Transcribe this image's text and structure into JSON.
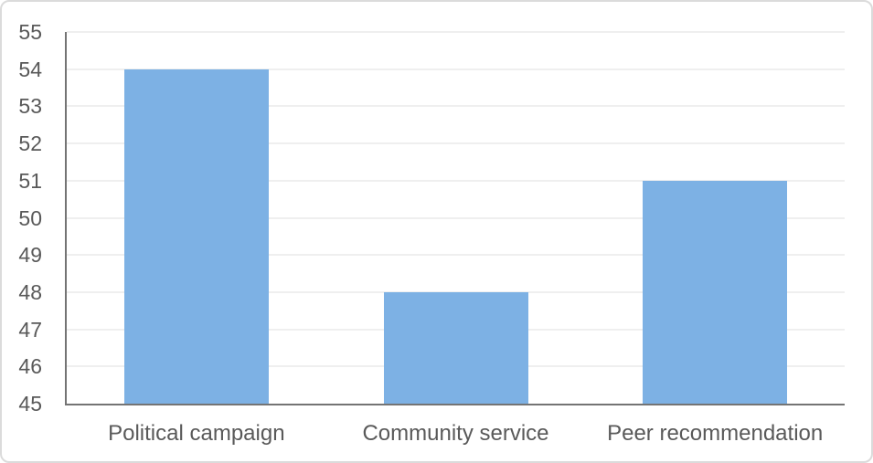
{
  "chart_data": {
    "type": "bar",
    "title": "",
    "xlabel": "",
    "ylabel": "",
    "categories": [
      "Political campaign",
      "Community service",
      "Peer recommendation"
    ],
    "values": [
      54,
      48,
      51
    ],
    "ylim": [
      45,
      55
    ],
    "ytick_step": 1,
    "yticks": [
      "45",
      "46",
      "47",
      "48",
      "49",
      "50",
      "51",
      "52",
      "53",
      "54",
      "55"
    ],
    "grid": true,
    "legend": false,
    "bar_color": "#7db1e4",
    "gridline_color": "#efefef",
    "axis_line_color": "#747474",
    "tick_label_color": "#595959"
  }
}
